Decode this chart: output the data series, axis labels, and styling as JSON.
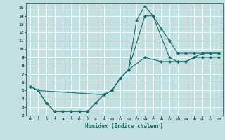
{
  "xlabel": "Humidex (Indice chaleur)",
  "xlim": [
    -0.5,
    23.5
  ],
  "ylim": [
    2,
    15.5
  ],
  "xticks": [
    0,
    1,
    2,
    3,
    4,
    5,
    6,
    7,
    8,
    9,
    10,
    11,
    12,
    13,
    14,
    15,
    16,
    17,
    18,
    19,
    20,
    21,
    22,
    23
  ],
  "yticks": [
    2,
    3,
    4,
    5,
    6,
    7,
    8,
    9,
    10,
    11,
    12,
    13,
    14,
    15
  ],
  "bg_color": "#c2e0e0",
  "line_color": "#1a6b6b",
  "grid_color": "#ffffff",
  "line1_x": [
    0,
    1,
    2,
    3,
    4,
    5,
    6,
    7,
    8,
    9,
    10,
    11,
    12,
    13,
    14,
    15,
    16,
    17,
    18,
    19,
    20,
    21,
    22,
    23
  ],
  "line1_y": [
    5.5,
    5.0,
    3.5,
    2.5,
    2.5,
    2.5,
    2.5,
    2.5,
    3.5,
    4.5,
    5.0,
    6.5,
    7.5,
    13.5,
    15.2,
    14.0,
    12.5,
    11.0,
    9.5,
    9.5,
    9.5,
    9.5,
    9.5,
    9.5
  ],
  "line2_x": [
    0,
    1,
    9,
    10,
    11,
    12,
    14,
    15,
    17,
    18,
    19,
    20,
    21,
    22,
    23
  ],
  "line2_y": [
    5.5,
    5.0,
    4.5,
    5.0,
    6.5,
    7.5,
    14.0,
    14.0,
    9.0,
    8.5,
    8.5,
    9.0,
    9.5,
    9.5,
    9.5
  ],
  "line3_x": [
    0,
    1,
    2,
    3,
    4,
    5,
    6,
    7,
    8,
    9,
    10,
    11,
    12,
    14,
    16,
    17,
    18,
    19,
    20,
    21,
    22,
    23
  ],
  "line3_y": [
    5.5,
    5.0,
    3.5,
    2.5,
    2.5,
    2.5,
    2.5,
    2.5,
    3.5,
    4.5,
    5.0,
    6.5,
    7.5,
    9.0,
    8.5,
    8.5,
    8.5,
    8.5,
    9.0,
    9.0,
    9.0,
    9.0
  ]
}
